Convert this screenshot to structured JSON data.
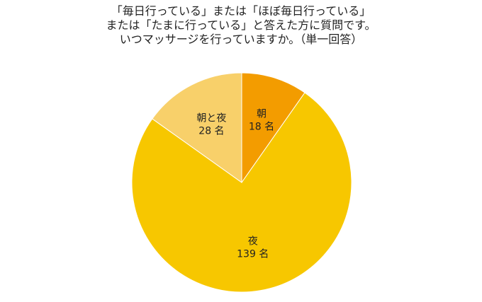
{
  "title_lines": [
    "「毎日行っている」または「ほぼ毎日行っている」",
    "または「たまに行っている」と答えた方に質問です。",
    "いつマッサージを行っていますか。（単一回答）"
  ],
  "chart_data": {
    "type": "pie",
    "title": "「毎日行っている」または「ほぼ毎日行っている」または「たまに行っている」と答えた方に質問です。いつマッサージを行っていますか。（単一回答）",
    "unit": "名",
    "start": "12 o'clock",
    "direction": "clockwise",
    "slices": [
      {
        "label": "朝",
        "value": 18,
        "value_text": "18 名",
        "color": "#F39C00"
      },
      {
        "label": "夜",
        "value": 139,
        "value_text": "139 名",
        "color": "#F7C700"
      },
      {
        "label": "朝と夜",
        "value": 28,
        "value_text": "28 名",
        "color": "#F8D06A"
      }
    ]
  }
}
